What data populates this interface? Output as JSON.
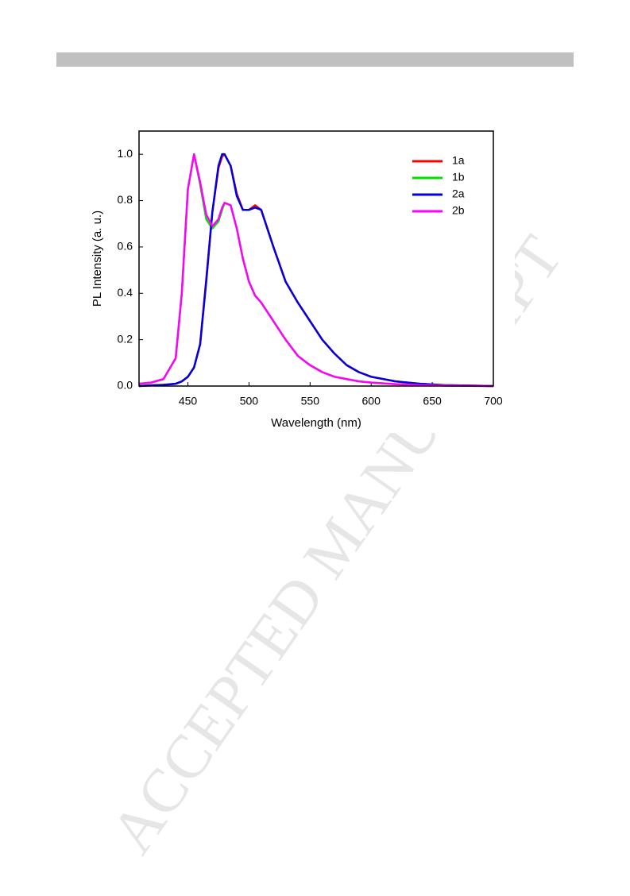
{
  "watermark": "ACCEPTED MANUSCRIPT",
  "chart_data": {
    "type": "line",
    "xlabel": "Wavelength (nm)",
    "ylabel": "PL Intensity (a. u.)",
    "x": [
      410,
      420,
      430,
      440,
      445,
      450,
      455,
      460,
      465,
      470,
      475,
      478,
      480,
      485,
      490,
      495,
      500,
      505,
      510,
      515,
      520,
      530,
      540,
      550,
      560,
      570,
      580,
      590,
      600,
      620,
      640,
      660,
      680,
      700
    ],
    "series": [
      {
        "name": "1a",
        "color": "#ff0000",
        "values": [
          0,
          0.003,
          0.005,
          0.01,
          0.02,
          0.04,
          0.08,
          0.18,
          0.46,
          0.75,
          0.94,
          0.99,
          1.0,
          0.95,
          0.83,
          0.76,
          0.76,
          0.78,
          0.76,
          0.68,
          0.6,
          0.45,
          0.36,
          0.28,
          0.2,
          0.14,
          0.09,
          0.06,
          0.04,
          0.02,
          0.01,
          0.004,
          0.002,
          0
        ]
      },
      {
        "name": "1b",
        "color": "#00e000",
        "values": [
          0.01,
          0.015,
          0.03,
          0.12,
          0.4,
          0.85,
          1.0,
          0.87,
          0.72,
          0.68,
          0.71,
          0.76,
          0.79,
          0.78,
          0.68,
          0.55,
          0.45,
          0.39,
          0.36,
          0.32,
          0.28,
          0.2,
          0.13,
          0.09,
          0.06,
          0.04,
          0.03,
          0.02,
          0.015,
          0.008,
          0.004,
          0.002,
          0.001,
          0
        ]
      },
      {
        "name": "2a",
        "color": "#0000e0",
        "values": [
          0,
          0.003,
          0.005,
          0.01,
          0.02,
          0.04,
          0.08,
          0.18,
          0.45,
          0.75,
          0.95,
          1.0,
          1.0,
          0.95,
          0.82,
          0.76,
          0.76,
          0.77,
          0.76,
          0.68,
          0.6,
          0.45,
          0.36,
          0.28,
          0.2,
          0.14,
          0.09,
          0.06,
          0.04,
          0.02,
          0.01,
          0.004,
          0.002,
          0
        ]
      },
      {
        "name": "2b",
        "color": "#ff00ff",
        "values": [
          0.01,
          0.015,
          0.03,
          0.12,
          0.4,
          0.85,
          1.0,
          0.88,
          0.74,
          0.69,
          0.72,
          0.77,
          0.79,
          0.78,
          0.68,
          0.55,
          0.45,
          0.39,
          0.36,
          0.32,
          0.28,
          0.2,
          0.13,
          0.09,
          0.06,
          0.04,
          0.03,
          0.02,
          0.015,
          0.008,
          0.004,
          0.002,
          0.001,
          0
        ]
      }
    ],
    "xlim": [
      410,
      700
    ],
    "xticks": [
      450,
      500,
      550,
      600,
      650,
      700
    ],
    "ylim": [
      0,
      1.1
    ],
    "yticks": [
      {
        "value": 0,
        "label": "0.0"
      },
      0.2,
      0.4,
      0.6,
      0.8,
      {
        "value": 1,
        "label": "1.0"
      }
    ],
    "legend": "upper right",
    "grid": false
  }
}
